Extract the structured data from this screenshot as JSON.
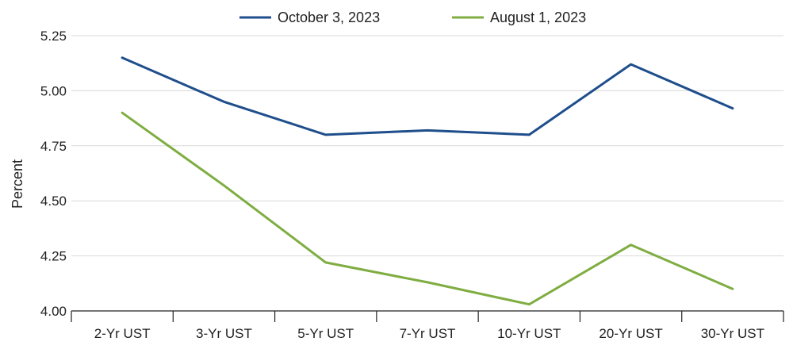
{
  "chart_data": {
    "type": "line",
    "title": "",
    "xlabel": "",
    "ylabel": "Percent",
    "categories": [
      "2-Yr UST",
      "3-Yr UST",
      "5-Yr UST",
      "7-Yr UST",
      "10-Yr UST",
      "20-Yr UST",
      "30-Yr UST"
    ],
    "ylim": [
      4.0,
      5.25
    ],
    "yticks": [
      "4.00",
      "4.25",
      "4.50",
      "4.75",
      "5.00",
      "5.25"
    ],
    "grid": true,
    "legend_position": "top-center",
    "series": [
      {
        "name": "October 3, 2023",
        "color": "#1f4e8c",
        "values": [
          5.15,
          4.95,
          4.8,
          4.82,
          4.8,
          5.12,
          4.92
        ]
      },
      {
        "name": "August 1, 2023",
        "color": "#7fad42",
        "values": [
          4.9,
          4.57,
          4.22,
          4.13,
          4.03,
          4.3,
          4.1
        ]
      }
    ]
  }
}
